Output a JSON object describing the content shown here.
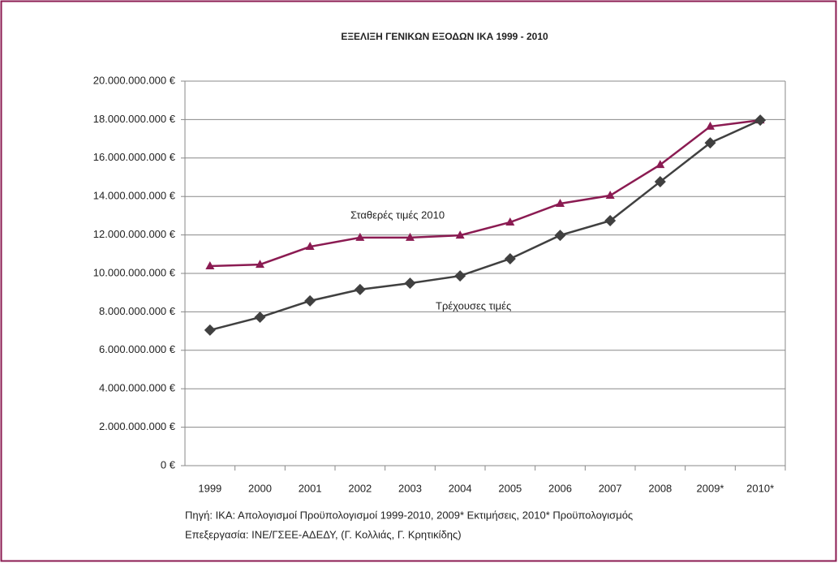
{
  "chart_data": {
    "type": "line",
    "title": "ΕΞΕΛΙΞΗ ΓΕΝΙΚΩΝ ΕΞΟΔΩΝ ΙΚΑ 1999 - 2010",
    "categories": [
      "1999",
      "2000",
      "2001",
      "2002",
      "2003",
      "2004",
      "2005",
      "2006",
      "2007",
      "2008",
      "2009*",
      "2010*"
    ],
    "series": [
      {
        "name": "Σταθερές τιμές 2010",
        "color": "#8b1b52",
        "marker": "triangle",
        "values": [
          10380000000,
          10460000000,
          11390000000,
          11860000000,
          11860000000,
          11980000000,
          12660000000,
          13630000000,
          14050000000,
          15650000000,
          17640000000,
          17970000000
        ]
      },
      {
        "name": "Τρέχουσες τιμές",
        "color": "#404040",
        "marker": "diamond",
        "values": [
          7050000000,
          7720000000,
          8570000000,
          9160000000,
          9490000000,
          9870000000,
          10760000000,
          11980000000,
          12740000000,
          14770000000,
          16790000000,
          17970000000
        ]
      }
    ],
    "ylim": [
      0,
      20000000000
    ],
    "yticks": [
      {
        "value": 0,
        "label": "0 €"
      },
      {
        "value": 2000000000,
        "label": "2.000.000.000 €"
      },
      {
        "value": 4000000000,
        "label": "4.000.000.000 €"
      },
      {
        "value": 6000000000,
        "label": "6.000.000.000 €"
      },
      {
        "value": 8000000000,
        "label": "8.000.000.000 €"
      },
      {
        "value": 10000000000,
        "label": "10.000.000.000 €"
      },
      {
        "value": 12000000000,
        "label": "12.000.000.000 €"
      },
      {
        "value": 14000000000,
        "label": "14.000.000.000 €"
      },
      {
        "value": 16000000000,
        "label": "16.000.000.000 €"
      },
      {
        "value": 18000000000,
        "label": "18.000.000.000 €"
      },
      {
        "value": 20000000000,
        "label": "20.000.000.000 €"
      }
    ],
    "grid": true,
    "source": [
      "Πηγή: ΙΚΑ: Απολογισμοί Προϋπολογισμοί 1999-2010, 2009* Εκτιμήσεις, 2010* Προϋπολογισμός",
      "Επεξεργασία: ΙΝΕ/ΓΣΕΕ-ΑΔΕΔΥ, (Γ. Κολλιάς, Γ. Κρητικίδης)"
    ]
  }
}
